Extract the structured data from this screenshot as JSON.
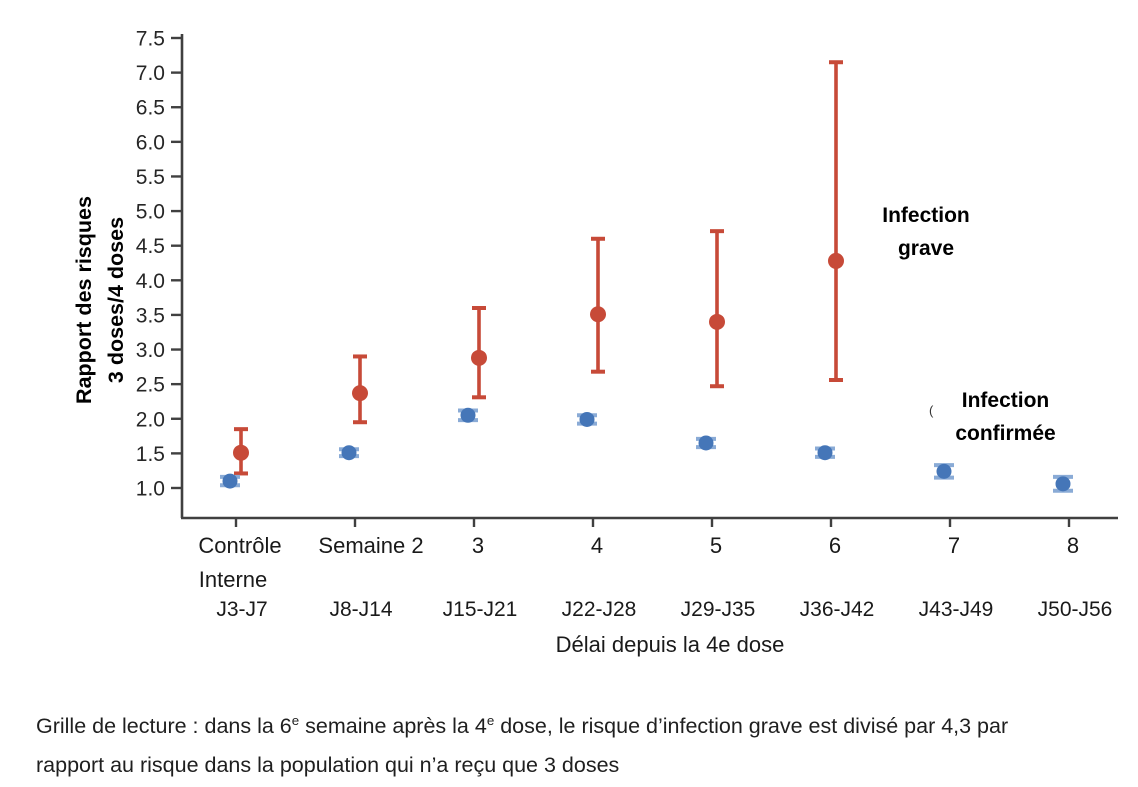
{
  "colors": {
    "severe": "#c74a38",
    "confirmed": "#4576b8",
    "confirmed_whisker": "#8aabd6",
    "axis": "#404040",
    "tick_text": "#262626"
  },
  "y_axis": {
    "label_line1": "Rapport des risques",
    "label_line2": "3 doses/4 doses"
  },
  "x_axis": {
    "title": "Délai depuis la 4e dose"
  },
  "legend": {
    "severe_line1": "Infection",
    "severe_line2": "grave",
    "confirmed_line1": "Infection",
    "confirmed_line2": "confirmée"
  },
  "stray_mark": "(",
  "chart_data": {
    "type": "scatter",
    "title": "",
    "xlabel": "Délai depuis la 4e dose",
    "ylabel": "Rapport des risques 3 doses/4 doses",
    "ylim": [
      0.56,
      7.5
    ],
    "yticks": [
      1.0,
      1.5,
      2.0,
      2.5,
      3.0,
      3.5,
      4.0,
      4.5,
      5.0,
      5.5,
      6.0,
      6.5,
      7.0,
      7.5
    ],
    "grid": false,
    "legend_position": "right-of-last-points",
    "categories": [
      {
        "week": "Contrôle",
        "week_line2": "Interne",
        "days": "J3-J7"
      },
      {
        "week": "Semaine 2",
        "week_line2": "",
        "days": "J8-J14"
      },
      {
        "week": "3",
        "week_line2": "",
        "days": "J15-J21"
      },
      {
        "week": "4",
        "week_line2": "",
        "days": "J22-J28"
      },
      {
        "week": "5",
        "week_line2": "",
        "days": "J29-J35"
      },
      {
        "week": "6",
        "week_line2": "",
        "days": "J36-J42"
      },
      {
        "week": "7",
        "week_line2": "",
        "days": "J43-J49"
      },
      {
        "week": "8",
        "week_line2": "",
        "days": "J50-J56"
      }
    ],
    "series": [
      {
        "name": "Infection grave",
        "color_key": "severe",
        "values": [
          1.51,
          2.37,
          2.88,
          3.51,
          3.4,
          4.28,
          null,
          null
        ],
        "ci_low": [
          1.21,
          1.95,
          2.31,
          2.68,
          2.47,
          2.56,
          null,
          null
        ],
        "ci_high": [
          1.85,
          2.9,
          3.6,
          4.6,
          4.71,
          7.15,
          null,
          null
        ]
      },
      {
        "name": "Infection confirmée",
        "color_key": "confirmed",
        "values": [
          1.1,
          1.51,
          2.05,
          1.99,
          1.65,
          1.51,
          1.24,
          1.06
        ],
        "ci_low": [
          1.04,
          1.46,
          1.98,
          1.93,
          1.59,
          1.45,
          1.15,
          0.96
        ],
        "ci_high": [
          1.16,
          1.56,
          2.12,
          2.05,
          1.71,
          1.57,
          1.33,
          1.16
        ]
      }
    ]
  },
  "caption": {
    "line1_parts": [
      {
        "t": "Grille de lecture : dans la 6"
      },
      {
        "t": "e",
        "sup": true
      },
      {
        "t": " semaine après la 4"
      },
      {
        "t": "e",
        "sup": true
      },
      {
        "t": " dose, le risque d’infection grave est divisé par 4,3 par"
      }
    ],
    "line2": "rapport au risque dans la population qui n’a reçu que 3 doses"
  }
}
